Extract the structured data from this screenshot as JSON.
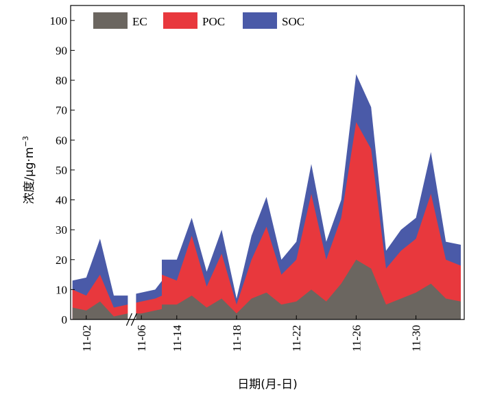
{
  "chart_data": {
    "type": "area",
    "stacked": true,
    "ylabel": "浓度/μg·m⁻³",
    "ylabel_parts": [
      "浓度/μg·m",
      "−3"
    ],
    "xlabel": "日期(月-日)",
    "ylim": [
      0,
      105
    ],
    "yticks": [
      0,
      10,
      20,
      30,
      40,
      50,
      60,
      70,
      80,
      90,
      100
    ],
    "xticks": [
      "11-02",
      "11-06",
      "11-14",
      "11-18",
      "11-22",
      "11-26",
      "11-30"
    ],
    "legend_position": "top-left",
    "axis_break": "between 11-08 and 11-14",
    "series": [
      {
        "name": "EC",
        "color": "#6b6660"
      },
      {
        "name": "POC",
        "color": "#e8383d"
      },
      {
        "name": "SOC",
        "color": "#4a5aa8"
      }
    ],
    "points": [
      {
        "x": "11-01",
        "ec": 4,
        "poc": 6,
        "soc": 3
      },
      {
        "x": "11-02",
        "ec": 3,
        "poc": 5,
        "soc": 6
      },
      {
        "x": "11-03",
        "ec": 6,
        "poc": 9,
        "soc": 12
      },
      {
        "x": "11-04",
        "ec": 1,
        "poc": 3,
        "soc": 4
      },
      {
        "x": "11-05",
        "ec": 2,
        "poc": 3,
        "soc": 3
      },
      {
        "x": "11-06",
        "ec": 2,
        "poc": 4,
        "soc": 3
      },
      {
        "x": "11-07",
        "ec": 3,
        "poc": 4,
        "soc": 3
      },
      {
        "x": "11-08",
        "ec": 4,
        "poc": 5,
        "soc": 7
      },
      {
        "x": "11-13",
        "ec": 5,
        "poc": 10,
        "soc": 5
      },
      {
        "x": "11-14",
        "ec": 5,
        "poc": 8,
        "soc": 7
      },
      {
        "x": "11-15",
        "ec": 8,
        "poc": 20,
        "soc": 6
      },
      {
        "x": "11-16",
        "ec": 4,
        "poc": 7,
        "soc": 5
      },
      {
        "x": "11-17",
        "ec": 7,
        "poc": 15,
        "soc": 8
      },
      {
        "x": "11-18",
        "ec": 2,
        "poc": 3,
        "soc": 2
      },
      {
        "x": "11-19",
        "ec": 7,
        "poc": 13,
        "soc": 8
      },
      {
        "x": "11-20",
        "ec": 9,
        "poc": 22,
        "soc": 10
      },
      {
        "x": "11-21",
        "ec": 5,
        "poc": 10,
        "soc": 5
      },
      {
        "x": "11-22",
        "ec": 6,
        "poc": 14,
        "soc": 6
      },
      {
        "x": "11-23",
        "ec": 10,
        "poc": 32,
        "soc": 10
      },
      {
        "x": "11-24",
        "ec": 6,
        "poc": 14,
        "soc": 6
      },
      {
        "x": "11-25",
        "ec": 12,
        "poc": 22,
        "soc": 6
      },
      {
        "x": "11-26",
        "ec": 20,
        "poc": 46,
        "soc": 16
      },
      {
        "x": "11-27",
        "ec": 17,
        "poc": 40,
        "soc": 14
      },
      {
        "x": "11-28",
        "ec": 5,
        "poc": 12,
        "soc": 6
      },
      {
        "x": "11-29",
        "ec": 7,
        "poc": 16,
        "soc": 7
      },
      {
        "x": "11-30",
        "ec": 9,
        "poc": 18,
        "soc": 7
      },
      {
        "x": "12-01",
        "ec": 12,
        "poc": 30,
        "soc": 14
      },
      {
        "x": "12-02",
        "ec": 7,
        "poc": 13,
        "soc": 6
      },
      {
        "x": "12-03",
        "ec": 6,
        "poc": 12,
        "soc": 7
      }
    ]
  }
}
